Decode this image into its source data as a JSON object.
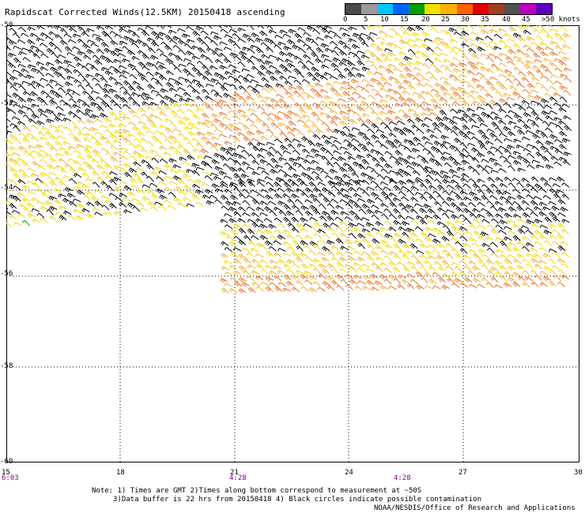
{
  "header": {
    "title": "Rapidscat Corrected Winds(12.5KM) 20150418 ascending"
  },
  "legend": {
    "unit_label": ">50 knots",
    "labels": [
      "0",
      "5",
      "10",
      "15",
      "20",
      "25",
      "30",
      "35",
      "40",
      "45"
    ],
    "colors": [
      "#4a4a4a",
      "#9a9a9a",
      "#00c8ff",
      "#0064ff",
      "#00a000",
      "#f0e000",
      "#ffb000",
      "#ff6000",
      "#e00000",
      "#a04020",
      "#505050",
      "#c000c0",
      "#6000c0"
    ]
  },
  "map": {
    "y_ticks": [
      "-50",
      "-52",
      "-54",
      "-56",
      "-58",
      "-60"
    ],
    "x_ticks": [
      "15",
      "18",
      "21",
      "24",
      "27",
      "30"
    ],
    "time_labels": [
      "6:03",
      "4:28",
      "4:28"
    ],
    "barb_colors": {
      "calm": "#000000",
      "light": "#f0d800",
      "moderate": "#f0b030",
      "strong": "#e87020",
      "green": "#00a000"
    }
  },
  "notes": {
    "line1": "Note: 1) Times are GMT 2)Times along bottom correspond to measurement at ~50S",
    "line2": "3)Data buffer is 22 hrs from 20150418 4) Black circles indicate possible contamination",
    "line3": "NOAA/NESDIS/Office of Research and Applications"
  }
}
